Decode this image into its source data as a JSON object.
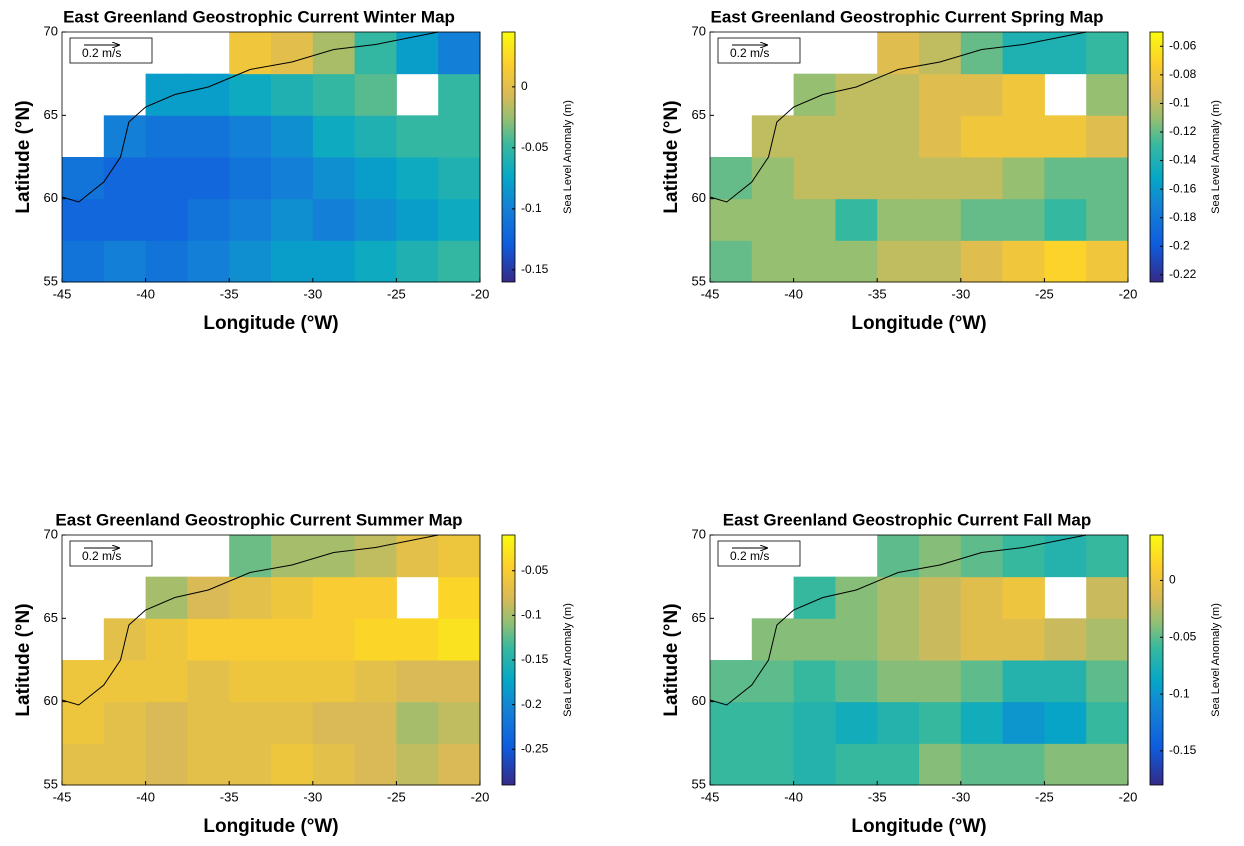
{
  "chart_data": [
    {
      "type": "heatmap",
      "title": "East Greenland Geostrophic Current Winter Map",
      "xlabel": "Longitude (°W)",
      "ylabel": "Latitude (°N)",
      "colorbar_label": "Sea Level Anomaly (m)",
      "reference_label": "0.2 m/s",
      "xlim": [
        -45,
        -20
      ],
      "ylim": [
        55,
        70
      ],
      "xticks": [
        -45,
        -40,
        -35,
        -30,
        -25,
        -20
      ],
      "yticks": [
        55,
        60,
        65,
        70
      ],
      "clim": [
        -0.16,
        0.045
      ],
      "cticks": [
        -0.15,
        -0.1,
        -0.05,
        0
      ],
      "x": [
        -43.75,
        -41.25,
        -38.75,
        -36.25,
        -33.75,
        -31.25,
        -28.75,
        -26.25,
        -23.75,
        -21.25
      ],
      "y": [
        56.25,
        58.75,
        61.25,
        63.75,
        66.25,
        68.75
      ],
      "values": [
        [
          -0.11,
          -0.1,
          -0.11,
          -0.1,
          -0.09,
          -0.08,
          -0.08,
          -0.07,
          -0.06,
          -0.05
        ],
        [
          -0.12,
          -0.12,
          -0.12,
          -0.11,
          -0.1,
          -0.09,
          -0.1,
          -0.09,
          -0.08,
          -0.07
        ],
        [
          -0.11,
          -0.12,
          -0.12,
          -0.12,
          -0.11,
          -0.1,
          -0.09,
          -0.08,
          -0.07,
          -0.06
        ],
        [
          null,
          -0.1,
          -0.11,
          -0.11,
          -0.1,
          -0.09,
          -0.07,
          -0.06,
          -0.05,
          -0.05
        ],
        [
          null,
          null,
          -0.08,
          -0.08,
          -0.07,
          -0.06,
          -0.05,
          -0.04,
          null,
          -0.05
        ],
        [
          null,
          null,
          null,
          null,
          0.01,
          0,
          -0.02,
          -0.05,
          -0.08,
          -0.1
        ]
      ]
    },
    {
      "type": "heatmap",
      "title": "East Greenland Geostrophic Current Spring Map",
      "xlabel": "Longitude (°W)",
      "ylabel": "Latitude (°N)",
      "colorbar_label": "Sea Level Anomaly (m)",
      "reference_label": "0.2 m/s",
      "xlim": [
        -45,
        -20
      ],
      "ylim": [
        55,
        70
      ],
      "xticks": [
        -45,
        -40,
        -35,
        -30,
        -25,
        -20
      ],
      "yticks": [
        55,
        60,
        65,
        70
      ],
      "clim": [
        -0.225,
        -0.05
      ],
      "cticks": [
        -0.22,
        -0.2,
        -0.18,
        -0.16,
        -0.14,
        -0.12,
        -0.1,
        -0.08,
        -0.06
      ],
      "x": [
        -43.75,
        -41.25,
        -38.75,
        -36.25,
        -33.75,
        -31.25,
        -28.75,
        -26.25,
        -23.75,
        -21.25
      ],
      "y": [
        56.25,
        58.75,
        61.25,
        63.75,
        66.25,
        68.75
      ],
      "values": [
        [
          -0.12,
          -0.11,
          -0.11,
          -0.11,
          -0.1,
          -0.1,
          -0.09,
          -0.08,
          -0.07,
          -0.08
        ],
        [
          -0.11,
          -0.11,
          -0.11,
          -0.13,
          -0.11,
          -0.11,
          -0.12,
          -0.12,
          -0.13,
          -0.12
        ],
        [
          -0.12,
          -0.11,
          -0.1,
          -0.1,
          -0.1,
          -0.1,
          -0.1,
          -0.11,
          -0.12,
          -0.12
        ],
        [
          null,
          -0.1,
          -0.1,
          -0.1,
          -0.1,
          -0.09,
          -0.08,
          -0.08,
          -0.08,
          -0.09
        ],
        [
          null,
          null,
          -0.11,
          -0.1,
          -0.1,
          -0.09,
          -0.09,
          -0.08,
          null,
          -0.11
        ],
        [
          null,
          null,
          null,
          null,
          -0.09,
          -0.1,
          -0.12,
          -0.14,
          -0.14,
          -0.13
        ]
      ]
    },
    {
      "type": "heatmap",
      "title": "East Greenland Geostrophic Current Summer Map",
      "xlabel": "Longitude (°W)",
      "ylabel": "Latitude (°N)",
      "colorbar_label": "Sea Level Anomaly (m)",
      "reference_label": "0.2 m/s",
      "xlim": [
        -45,
        -20
      ],
      "ylim": [
        55,
        70
      ],
      "xticks": [
        -45,
        -40,
        -35,
        -30,
        -25,
        -20
      ],
      "yticks": [
        55,
        60,
        65,
        70
      ],
      "clim": [
        -0.29,
        -0.01
      ],
      "cticks": [
        -0.25,
        -0.2,
        -0.15,
        -0.1,
        -0.05
      ],
      "x": [
        -43.75,
        -41.25,
        -38.75,
        -36.25,
        -33.75,
        -31.25,
        -28.75,
        -26.25,
        -23.75,
        -21.25
      ],
      "y": [
        56.25,
        58.75,
        61.25,
        63.75,
        66.25,
        68.75
      ],
      "values": [
        [
          -0.07,
          -0.07,
          -0.08,
          -0.07,
          -0.07,
          -0.06,
          -0.07,
          -0.08,
          -0.09,
          -0.08
        ],
        [
          -0.06,
          -0.07,
          -0.08,
          -0.07,
          -0.07,
          -0.07,
          -0.08,
          -0.08,
          -0.1,
          -0.09
        ],
        [
          -0.06,
          -0.06,
          -0.06,
          -0.07,
          -0.06,
          -0.06,
          -0.06,
          -0.07,
          -0.08,
          -0.08
        ],
        [
          null,
          -0.07,
          -0.06,
          -0.05,
          -0.05,
          -0.05,
          -0.05,
          -0.04,
          -0.04,
          -0.03
        ],
        [
          null,
          null,
          -0.1,
          -0.08,
          -0.07,
          -0.06,
          -0.05,
          -0.05,
          null,
          -0.04
        ],
        [
          null,
          null,
          null,
          null,
          -0.12,
          -0.1,
          -0.1,
          -0.09,
          -0.07,
          -0.06
        ]
      ]
    },
    {
      "type": "heatmap",
      "title": "East Greenland Geostrophic Current Fall Map",
      "xlabel": "Longitude (°W)",
      "ylabel": "Latitude (°N)",
      "colorbar_label": "Sea Level Anomaly (m)",
      "reference_label": "0.2 m/s",
      "xlim": [
        -45,
        -20
      ],
      "ylim": [
        55,
        70
      ],
      "xticks": [
        -45,
        -40,
        -35,
        -30,
        -25,
        -20
      ],
      "yticks": [
        55,
        60,
        65,
        70
      ],
      "clim": [
        -0.18,
        0.04
      ],
      "cticks": [
        -0.15,
        -0.1,
        -0.05,
        0
      ],
      "x": [
        -43.75,
        -41.25,
        -38.75,
        -36.25,
        -33.75,
        -31.25,
        -28.75,
        -26.25,
        -23.75,
        -21.25
      ],
      "y": [
        56.25,
        58.75,
        61.25,
        63.75,
        66.25,
        68.75
      ],
      "values": [
        [
          -0.06,
          -0.06,
          -0.07,
          -0.06,
          -0.06,
          -0.04,
          -0.05,
          -0.05,
          -0.04,
          -0.04
        ],
        [
          -0.06,
          -0.06,
          -0.07,
          -0.08,
          -0.07,
          -0.06,
          -0.08,
          -0.1,
          -0.09,
          -0.06
        ],
        [
          -0.05,
          -0.05,
          -0.06,
          -0.05,
          -0.04,
          -0.04,
          -0.05,
          -0.07,
          -0.07,
          -0.05
        ],
        [
          null,
          -0.04,
          -0.04,
          -0.04,
          -0.03,
          -0.02,
          -0.01,
          -0.01,
          -0.02,
          -0.03
        ],
        [
          null,
          null,
          -0.06,
          -0.04,
          -0.03,
          -0.02,
          -0.01,
          0,
          null,
          -0.02
        ],
        [
          null,
          null,
          null,
          null,
          -0.05,
          -0.04,
          -0.05,
          -0.06,
          -0.07,
          -0.06
        ]
      ]
    }
  ]
}
